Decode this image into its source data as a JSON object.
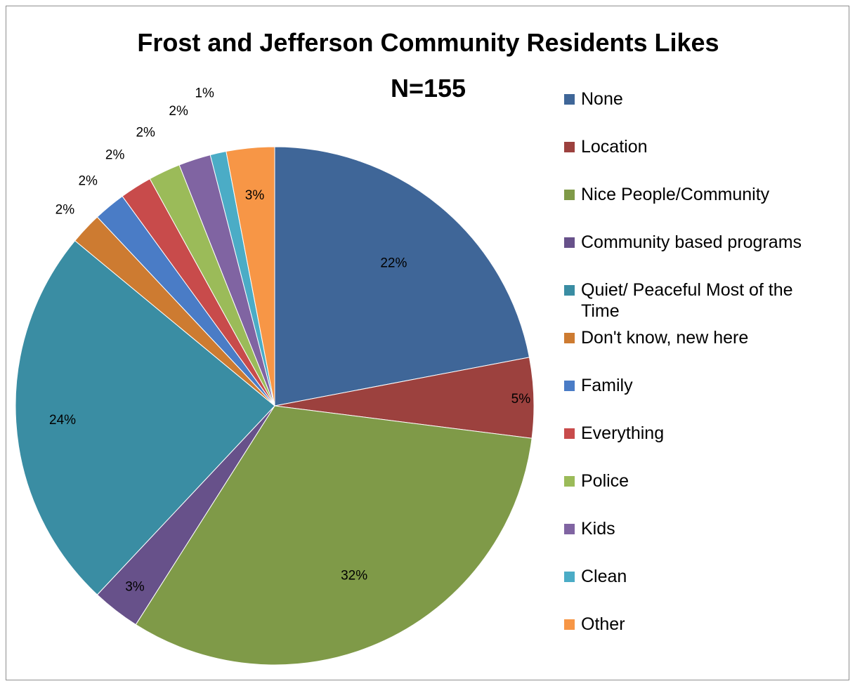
{
  "chart_data": {
    "type": "pie",
    "title": "Frost and Jefferson Community Residents Likes",
    "subtitle": "N=155",
    "legend_position": "right",
    "slices": [
      {
        "label": "None",
        "value": 22,
        "value_label": "22%",
        "color": "#3f6698"
      },
      {
        "label": "Location",
        "value": 5,
        "value_label": "5%",
        "color": "#9c413e"
      },
      {
        "label": "Nice People/Community",
        "value": 32,
        "value_label": "32%",
        "color": "#7f9a48"
      },
      {
        "label": "Community based programs",
        "value": 3,
        "value_label": "3%",
        "color": "#67518a"
      },
      {
        "label": "Quiet/ Peaceful Most of the Time",
        "value": 24,
        "value_label": "24%",
        "color": "#3a8da3"
      },
      {
        "label": "Don't know, new here",
        "value": 2,
        "value_label": "2%",
        "color": "#cd7b31"
      },
      {
        "label": "Family",
        "value": 2,
        "value_label": "2%",
        "color": "#4a7cc6"
      },
      {
        "label": "Everything",
        "value": 2,
        "value_label": "2%",
        "color": "#c84b4b"
      },
      {
        "label": "Police",
        "value": 2,
        "value_label": "2%",
        "color": "#9bbb59"
      },
      {
        "label": "Kids",
        "value": 2,
        "value_label": "2%",
        "color": "#8064a2"
      },
      {
        "label": "Clean",
        "value": 1,
        "value_label": "1%",
        "color": "#4bacc6"
      },
      {
        "label": "Other",
        "value": 3,
        "value_label": "3%",
        "color": "#f79646"
      }
    ]
  }
}
